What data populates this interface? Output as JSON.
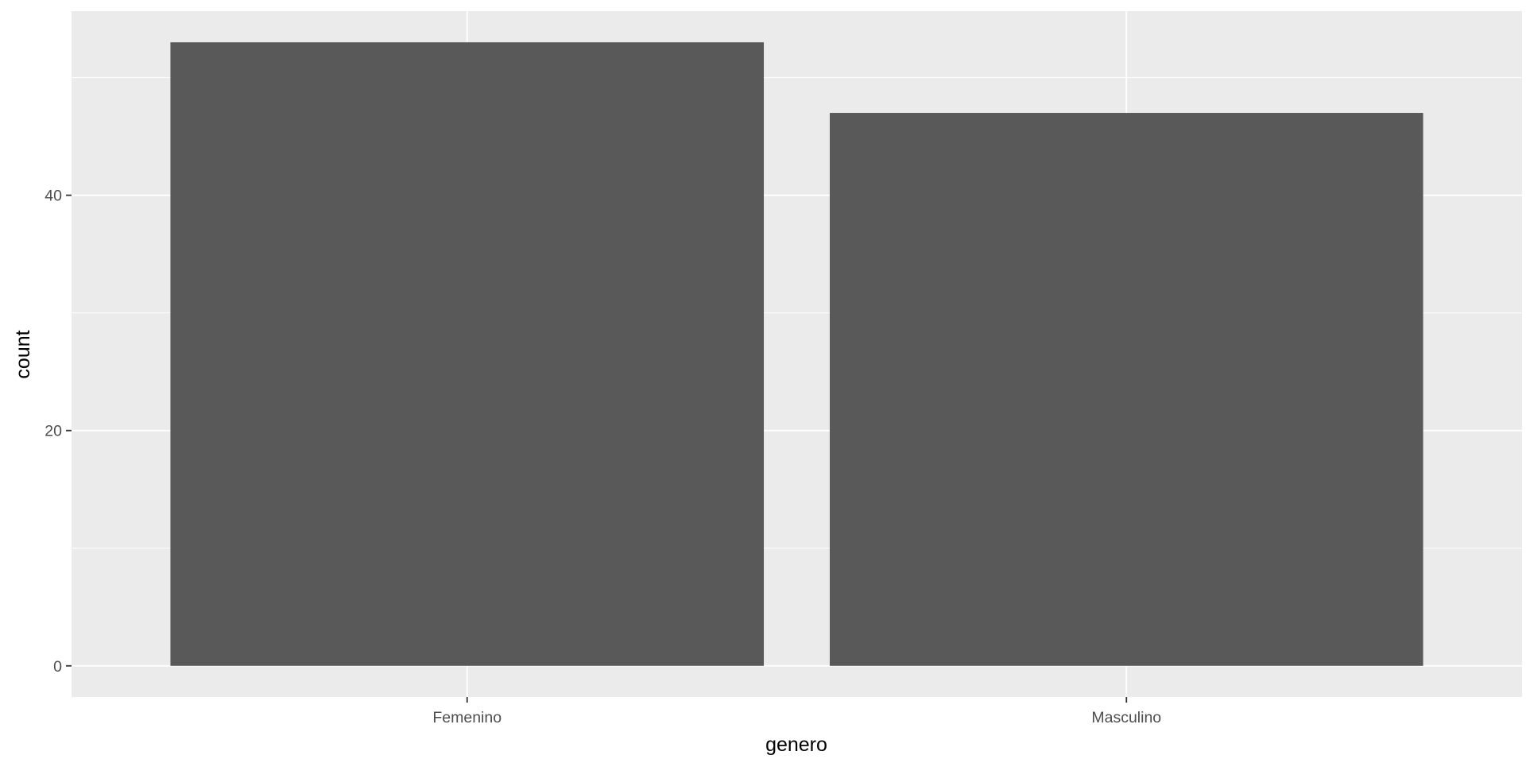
{
  "chart_data": {
    "type": "bar",
    "title": "",
    "xlabel": "genero",
    "ylabel": "count",
    "categories": [
      "Femenino",
      "Masculino"
    ],
    "values": [
      53,
      47
    ],
    "ylim": [
      -2.65,
      55.65
    ],
    "yticks": [
      0,
      20,
      40
    ],
    "yticks_minor": [
      10,
      30,
      50
    ],
    "grid": true,
    "legend": "none",
    "colors": {
      "panel": "#ebebeb",
      "bar": "#595959",
      "grid": "#ffffff",
      "tick_label": "#4d4d4d",
      "axis_title": "#000000"
    }
  }
}
